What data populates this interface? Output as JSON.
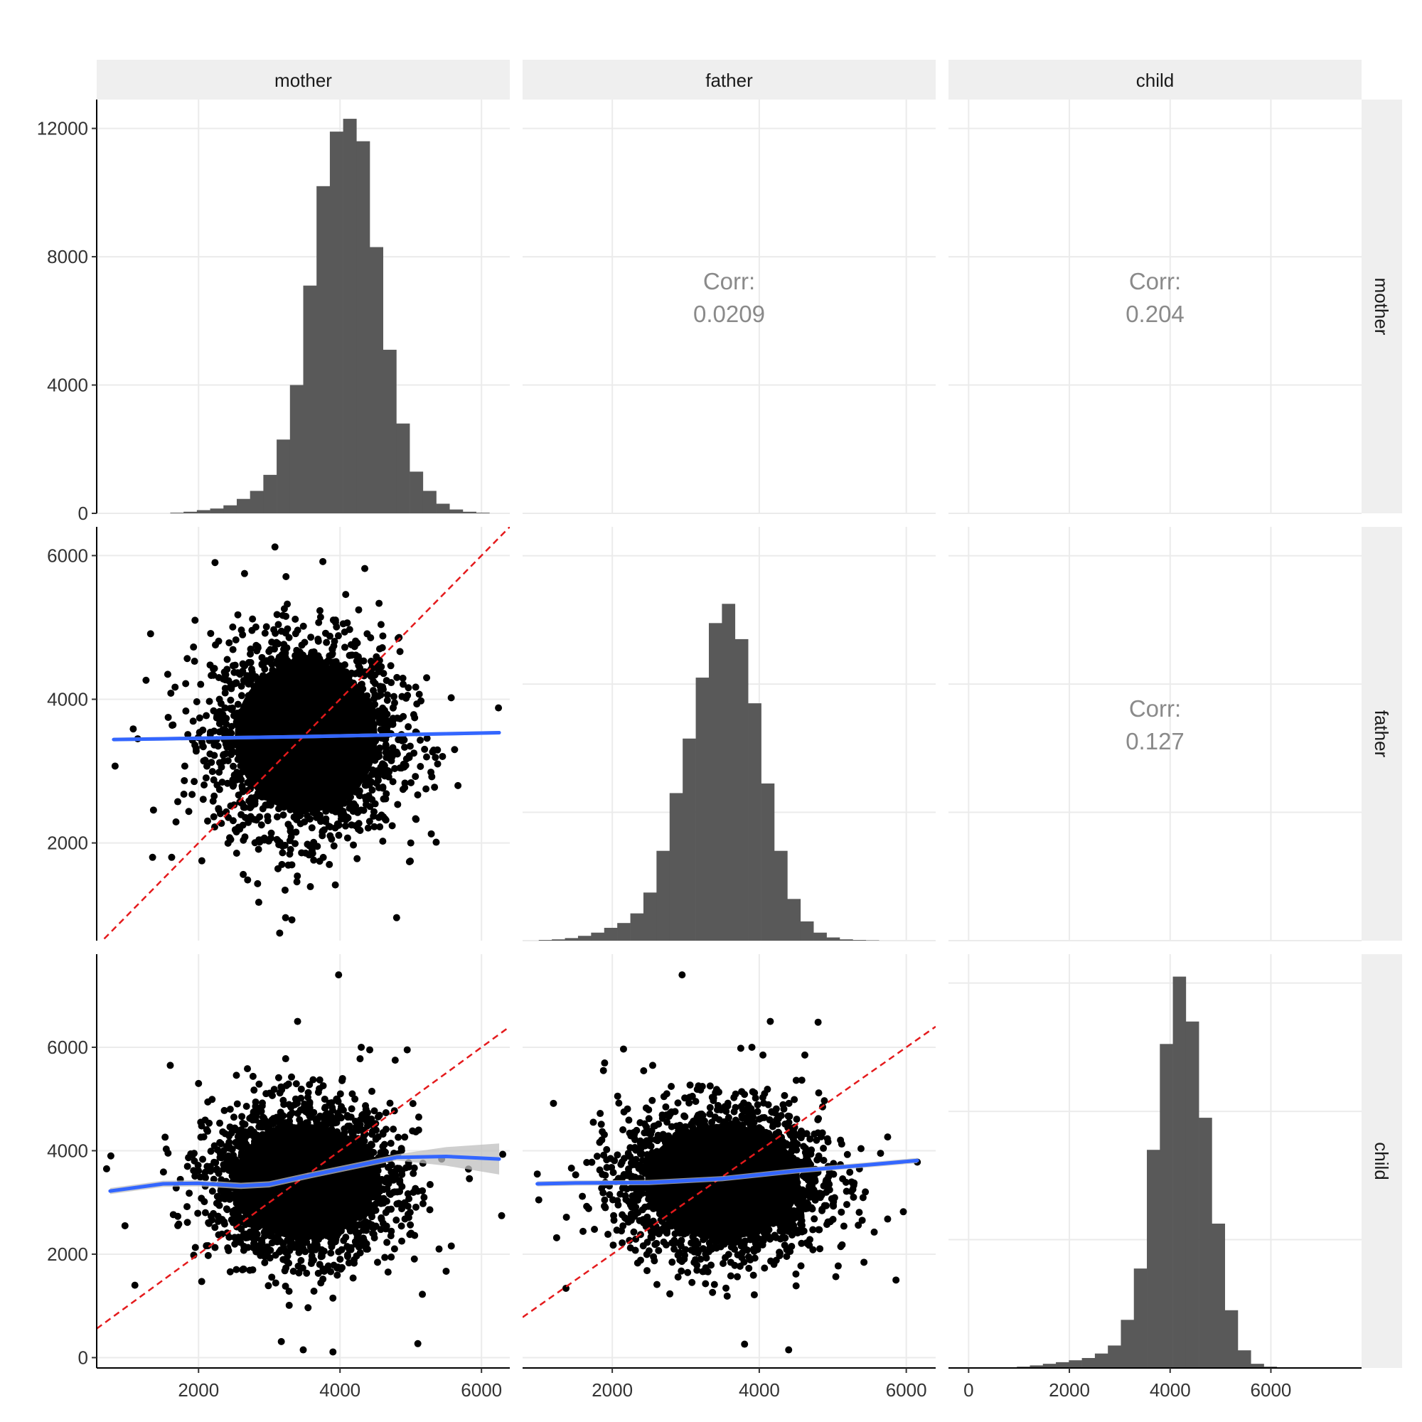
{
  "colors": {
    "panel_bg": "#ffffff",
    "strip_bg": "#efefef",
    "grid": "#ebebeb",
    "axis": "#000000",
    "hist_fill": "#595959",
    "points": "#000000",
    "smooth_line": "#3366ff",
    "smooth_band": "#bfbfbf",
    "identity_line": "#e41a1c",
    "corr_text": "#8a8a8a"
  },
  "chart_data": {
    "type": "scatter",
    "subtype": "pairs-matrix",
    "variables": [
      "mother",
      "father",
      "child"
    ],
    "column_strips": [
      "mother",
      "father",
      "child"
    ],
    "row_strips": [
      "mother",
      "father",
      "child"
    ],
    "grid": true,
    "x_ticks": {
      "mother": [
        "2000",
        "4000",
        "6000"
      ],
      "father": [
        "2000",
        "4000",
        "6000"
      ],
      "child": [
        "0",
        "2000",
        "4000",
        "6000"
      ]
    },
    "x_ranges": {
      "mother": [
        560,
        6400
      ],
      "father": [
        780,
        6400
      ],
      "child": [
        -400,
        7800
      ]
    },
    "diag_y_ticks": [
      "0",
      "4000",
      "8000",
      "12000"
    ],
    "diag_y_range": [
      0,
      12900
    ],
    "row_y_ticks": {
      "father": [
        "2000",
        "4000",
        "6000"
      ],
      "child": [
        "0",
        "2000",
        "4000",
        "6000"
      ]
    },
    "row_y_ranges": {
      "father": [
        640,
        6400
      ],
      "child": [
        -200,
        7800
      ]
    },
    "correlations": [
      {
        "row": "mother",
        "col": "father",
        "label": "Corr:",
        "value": "0.0209"
      },
      {
        "row": "mother",
        "col": "child",
        "label": "Corr:",
        "value": "0.204"
      },
      {
        "row": "father",
        "col": "child",
        "label": "Corr:",
        "value": "0.127"
      }
    ],
    "histograms": {
      "mother": {
        "bin_start": 1600,
        "bin_width": 188,
        "counts": [
          20,
          50,
          100,
          150,
          250,
          450,
          700,
          1200,
          2300,
          4000,
          7100,
          10200,
          11900,
          12300,
          11600,
          8300,
          5100,
          2800,
          1300,
          700,
          300,
          120,
          50,
          20
        ]
      },
      "father": {
        "bin_start": 1000,
        "bin_width": 178,
        "counts": [
          20,
          40,
          80,
          150,
          250,
          400,
          550,
          850,
          1500,
          2800,
          4600,
          6300,
          8200,
          9900,
          10500,
          9400,
          7400,
          4900,
          2800,
          1300,
          600,
          250,
          100,
          40,
          20,
          10
        ]
      },
      "child": {
        "bin_start": 700,
        "bin_width": 258,
        "counts": [
          20,
          40,
          80,
          130,
          180,
          240,
          310,
          450,
          700,
          1500,
          3100,
          6800,
          10100,
          12200,
          10800,
          7800,
          4500,
          1800,
          550,
          130,
          40,
          15
        ]
      }
    },
    "scatter_panels": [
      {
        "row": "father",
        "col": "mother",
        "center": [
          3520,
          3480
        ],
        "sd": [
          650,
          680
        ],
        "n": 2600,
        "smooth": {
          "x": [
            800,
            1500,
            2500,
            3500,
            4500,
            5500,
            6250
          ],
          "y": [
            3440,
            3450,
            3465,
            3480,
            3500,
            3520,
            3535
          ]
        },
        "band": 25,
        "outliers": [
          [
            3080,
            6120
          ],
          [
            4350,
            5820
          ],
          [
            6240,
            3880
          ],
          [
            820,
            3070
          ],
          [
            1140,
            3450
          ],
          [
            1350,
            1800
          ],
          [
            1620,
            1800
          ],
          [
            3230,
            960
          ],
          [
            3320,
            930
          ],
          [
            4800,
            960
          ],
          [
            5000,
            2000
          ],
          [
            5380,
            3100
          ],
          [
            5620,
            3300
          ],
          [
            1950,
            5100
          ],
          [
            2650,
            5750
          ]
        ]
      },
      {
        "row": "child",
        "col": "mother",
        "center": [
          3500,
          3400
        ],
        "sd": [
          650,
          720
        ],
        "n": 2600,
        "smooth": {
          "x": [
            750,
            1500,
            2000,
            2600,
            3000,
            3600,
            4200,
            4800,
            5500,
            6250
          ],
          "y": [
            3220,
            3360,
            3370,
            3320,
            3350,
            3530,
            3700,
            3870,
            3890,
            3840
          ]
        },
        "band": 60,
        "band_wide_right": 300,
        "outliers": [
          [
            3980,
            7400
          ],
          [
            3400,
            6500
          ],
          [
            4300,
            6000
          ],
          [
            4420,
            5950
          ],
          [
            4950,
            5950
          ],
          [
            4780,
            5750
          ],
          [
            6300,
            3930
          ],
          [
            700,
            3650
          ],
          [
            760,
            3900
          ],
          [
            960,
            2550
          ],
          [
            5100,
            270
          ],
          [
            5500,
            1670
          ],
          [
            5400,
            2100
          ],
          [
            1600,
            5650
          ],
          [
            2000,
            5300
          ],
          [
            3170,
            310
          ],
          [
            3480,
            150
          ],
          [
            3900,
            110
          ],
          [
            1100,
            1400
          ]
        ]
      },
      {
        "row": "child",
        "col": "father",
        "center": [
          3500,
          3400
        ],
        "sd": [
          680,
          720
        ],
        "n": 2600,
        "smooth": {
          "x": [
            980,
            1500,
            2500,
            3500,
            4500,
            5500,
            6150
          ],
          "y": [
            3360,
            3375,
            3385,
            3460,
            3610,
            3730,
            3810
          ]
        },
        "band": 50,
        "outliers": [
          [
            2950,
            7400
          ],
          [
            4150,
            6500
          ],
          [
            3900,
            6000
          ],
          [
            4620,
            5850
          ],
          [
            6150,
            3780
          ],
          [
            980,
            3550
          ],
          [
            1000,
            3050
          ],
          [
            1370,
            1340
          ],
          [
            4050,
            5850
          ],
          [
            5960,
            2820
          ],
          [
            5860,
            1500
          ],
          [
            5650,
            3950
          ],
          [
            1880,
            5550
          ],
          [
            2550,
            5650
          ],
          [
            3800,
            260
          ],
          [
            4400,
            150
          ]
        ]
      }
    ]
  }
}
